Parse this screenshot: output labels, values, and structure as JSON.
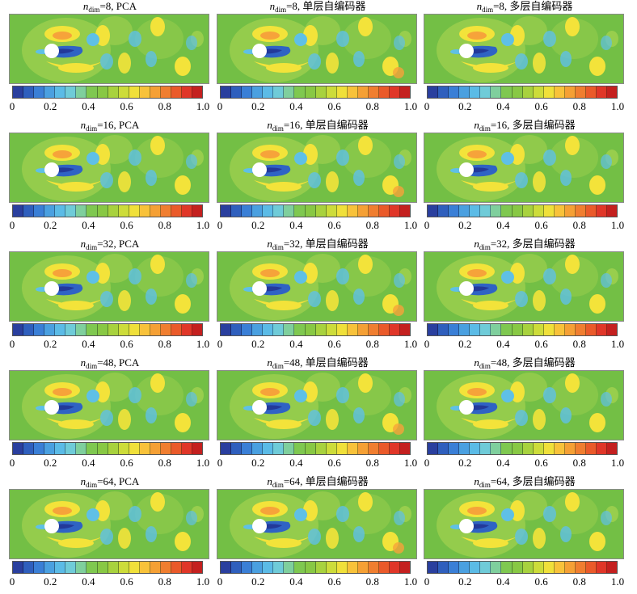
{
  "figure": {
    "colorbar": {
      "ticks": [
        "0",
        "0.2",
        "0.4",
        "0.6",
        "0.8",
        "1.0"
      ],
      "colors": [
        "#2a3f9e",
        "#2f5fbd",
        "#3a7fd6",
        "#4aa0e0",
        "#5bbbe6",
        "#6fcbd8",
        "#7fcf9d",
        "#7fc850",
        "#88c844",
        "#a8d23e",
        "#cddc3a",
        "#f0e03a",
        "#f8c23a",
        "#f5a035",
        "#f07e30",
        "#ea5a2a",
        "#e03628",
        "#c4201f"
      ]
    },
    "field_colors": {
      "background": "#73bf45",
      "light_green": "#9ccf4e",
      "yellow": "#f3e33a",
      "orange": "#f6a33a",
      "light_blue": "#5fc0e6",
      "blue": "#2f63c4",
      "dark_blue": "#23399a",
      "cylinder": "#ffffff"
    },
    "panels": [
      {
        "n": "n",
        "sub": "dim",
        "eq": "=8, ",
        "method": "PCA"
      },
      {
        "n": "n",
        "sub": "dim",
        "eq": "=8, ",
        "method": "单层自编码器"
      },
      {
        "n": "n",
        "sub": "dim",
        "eq": "=8, ",
        "method": "多层自编码器"
      },
      {
        "n": "n",
        "sub": "dim",
        "eq": "=16, ",
        "method": "PCA"
      },
      {
        "n": "n",
        "sub": "dim",
        "eq": "=16, ",
        "method": "单层自编码器"
      },
      {
        "n": "n",
        "sub": "dim",
        "eq": "=16, ",
        "method": "多层自编码器"
      },
      {
        "n": "n",
        "sub": "dim",
        "eq": "=32, ",
        "method": "PCA"
      },
      {
        "n": "n",
        "sub": "dim",
        "eq": "=32, ",
        "method": "单层自编码器"
      },
      {
        "n": "n",
        "sub": "dim",
        "eq": "=32, ",
        "method": "多层自编码器"
      },
      {
        "n": "n",
        "sub": "dim",
        "eq": "=48, ",
        "method": "PCA"
      },
      {
        "n": "n",
        "sub": "dim",
        "eq": "=48, ",
        "method": "单层自编码器"
      },
      {
        "n": "n",
        "sub": "dim",
        "eq": "=48, ",
        "method": "多层自编码器"
      },
      {
        "n": "n",
        "sub": "dim",
        "eq": "=64, ",
        "method": "PCA"
      },
      {
        "n": "n",
        "sub": "dim",
        "eq": "=64, ",
        "method": "单层自编码器"
      },
      {
        "n": "n",
        "sub": "dim",
        "eq": "=64, ",
        "method": "多层自编码器"
      }
    ]
  }
}
